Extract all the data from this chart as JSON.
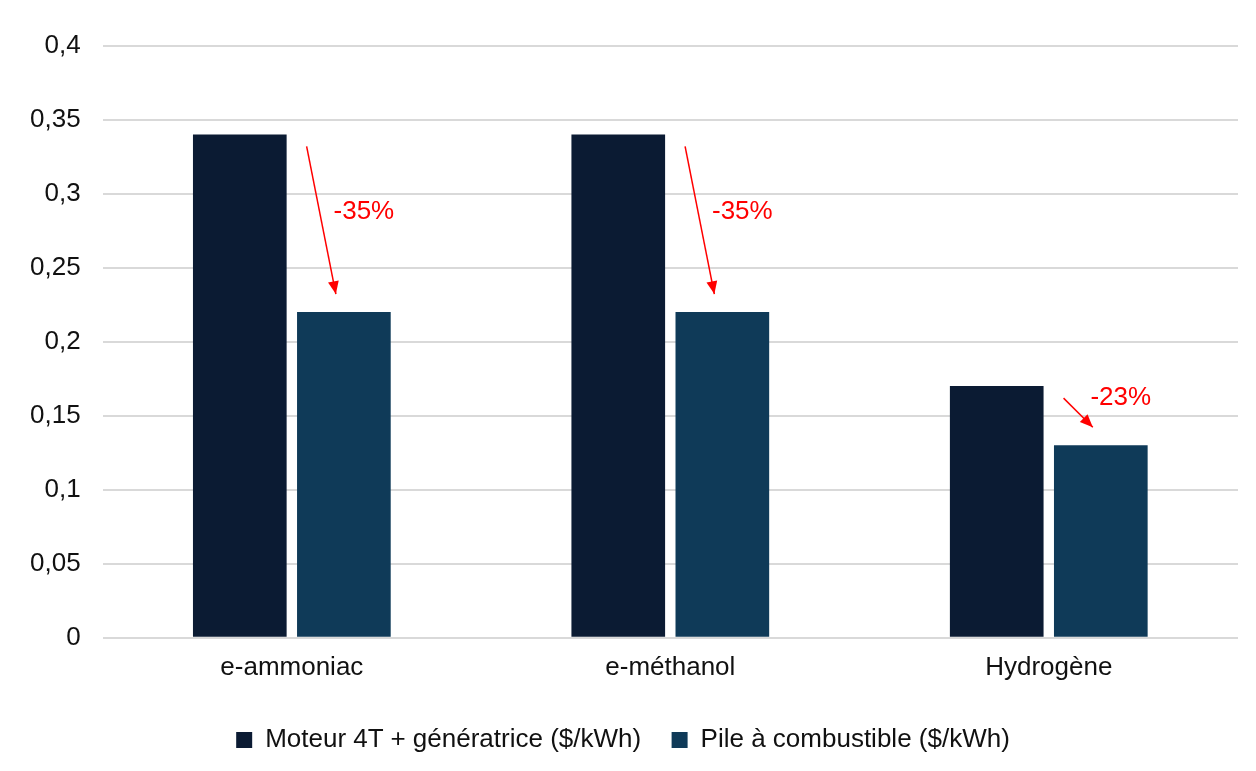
{
  "chart_data": {
    "type": "bar",
    "categories": [
      "e-ammoniac",
      "e-méthanol",
      "Hydrogène"
    ],
    "series": [
      {
        "name": "Moteur 4T + génératrice ($/kWh)",
        "color": "#0b1b33",
        "values": [
          0.34,
          0.34,
          0.17
        ]
      },
      {
        "name": "Pile à combustible ($/kWh)",
        "color": "#0f3a58",
        "values": [
          0.22,
          0.22,
          0.13
        ]
      }
    ],
    "ylim": [
      0,
      0.4
    ],
    "yticks": [
      {
        "value": 0,
        "label": "0"
      },
      {
        "value": 0.05,
        "label": "0,05"
      },
      {
        "value": 0.1,
        "label": "0,1"
      },
      {
        "value": 0.15,
        "label": "0,15"
      },
      {
        "value": 0.2,
        "label": "0,2"
      },
      {
        "value": 0.25,
        "label": "0,25"
      },
      {
        "value": 0.3,
        "label": "0,3"
      },
      {
        "value": 0.35,
        "label": "0,35"
      },
      {
        "value": 0.4,
        "label": "0,4"
      }
    ],
    "annotations": [
      "-35%",
      "-35%",
      "-23%"
    ],
    "grid": "y",
    "legend": "bottom"
  }
}
